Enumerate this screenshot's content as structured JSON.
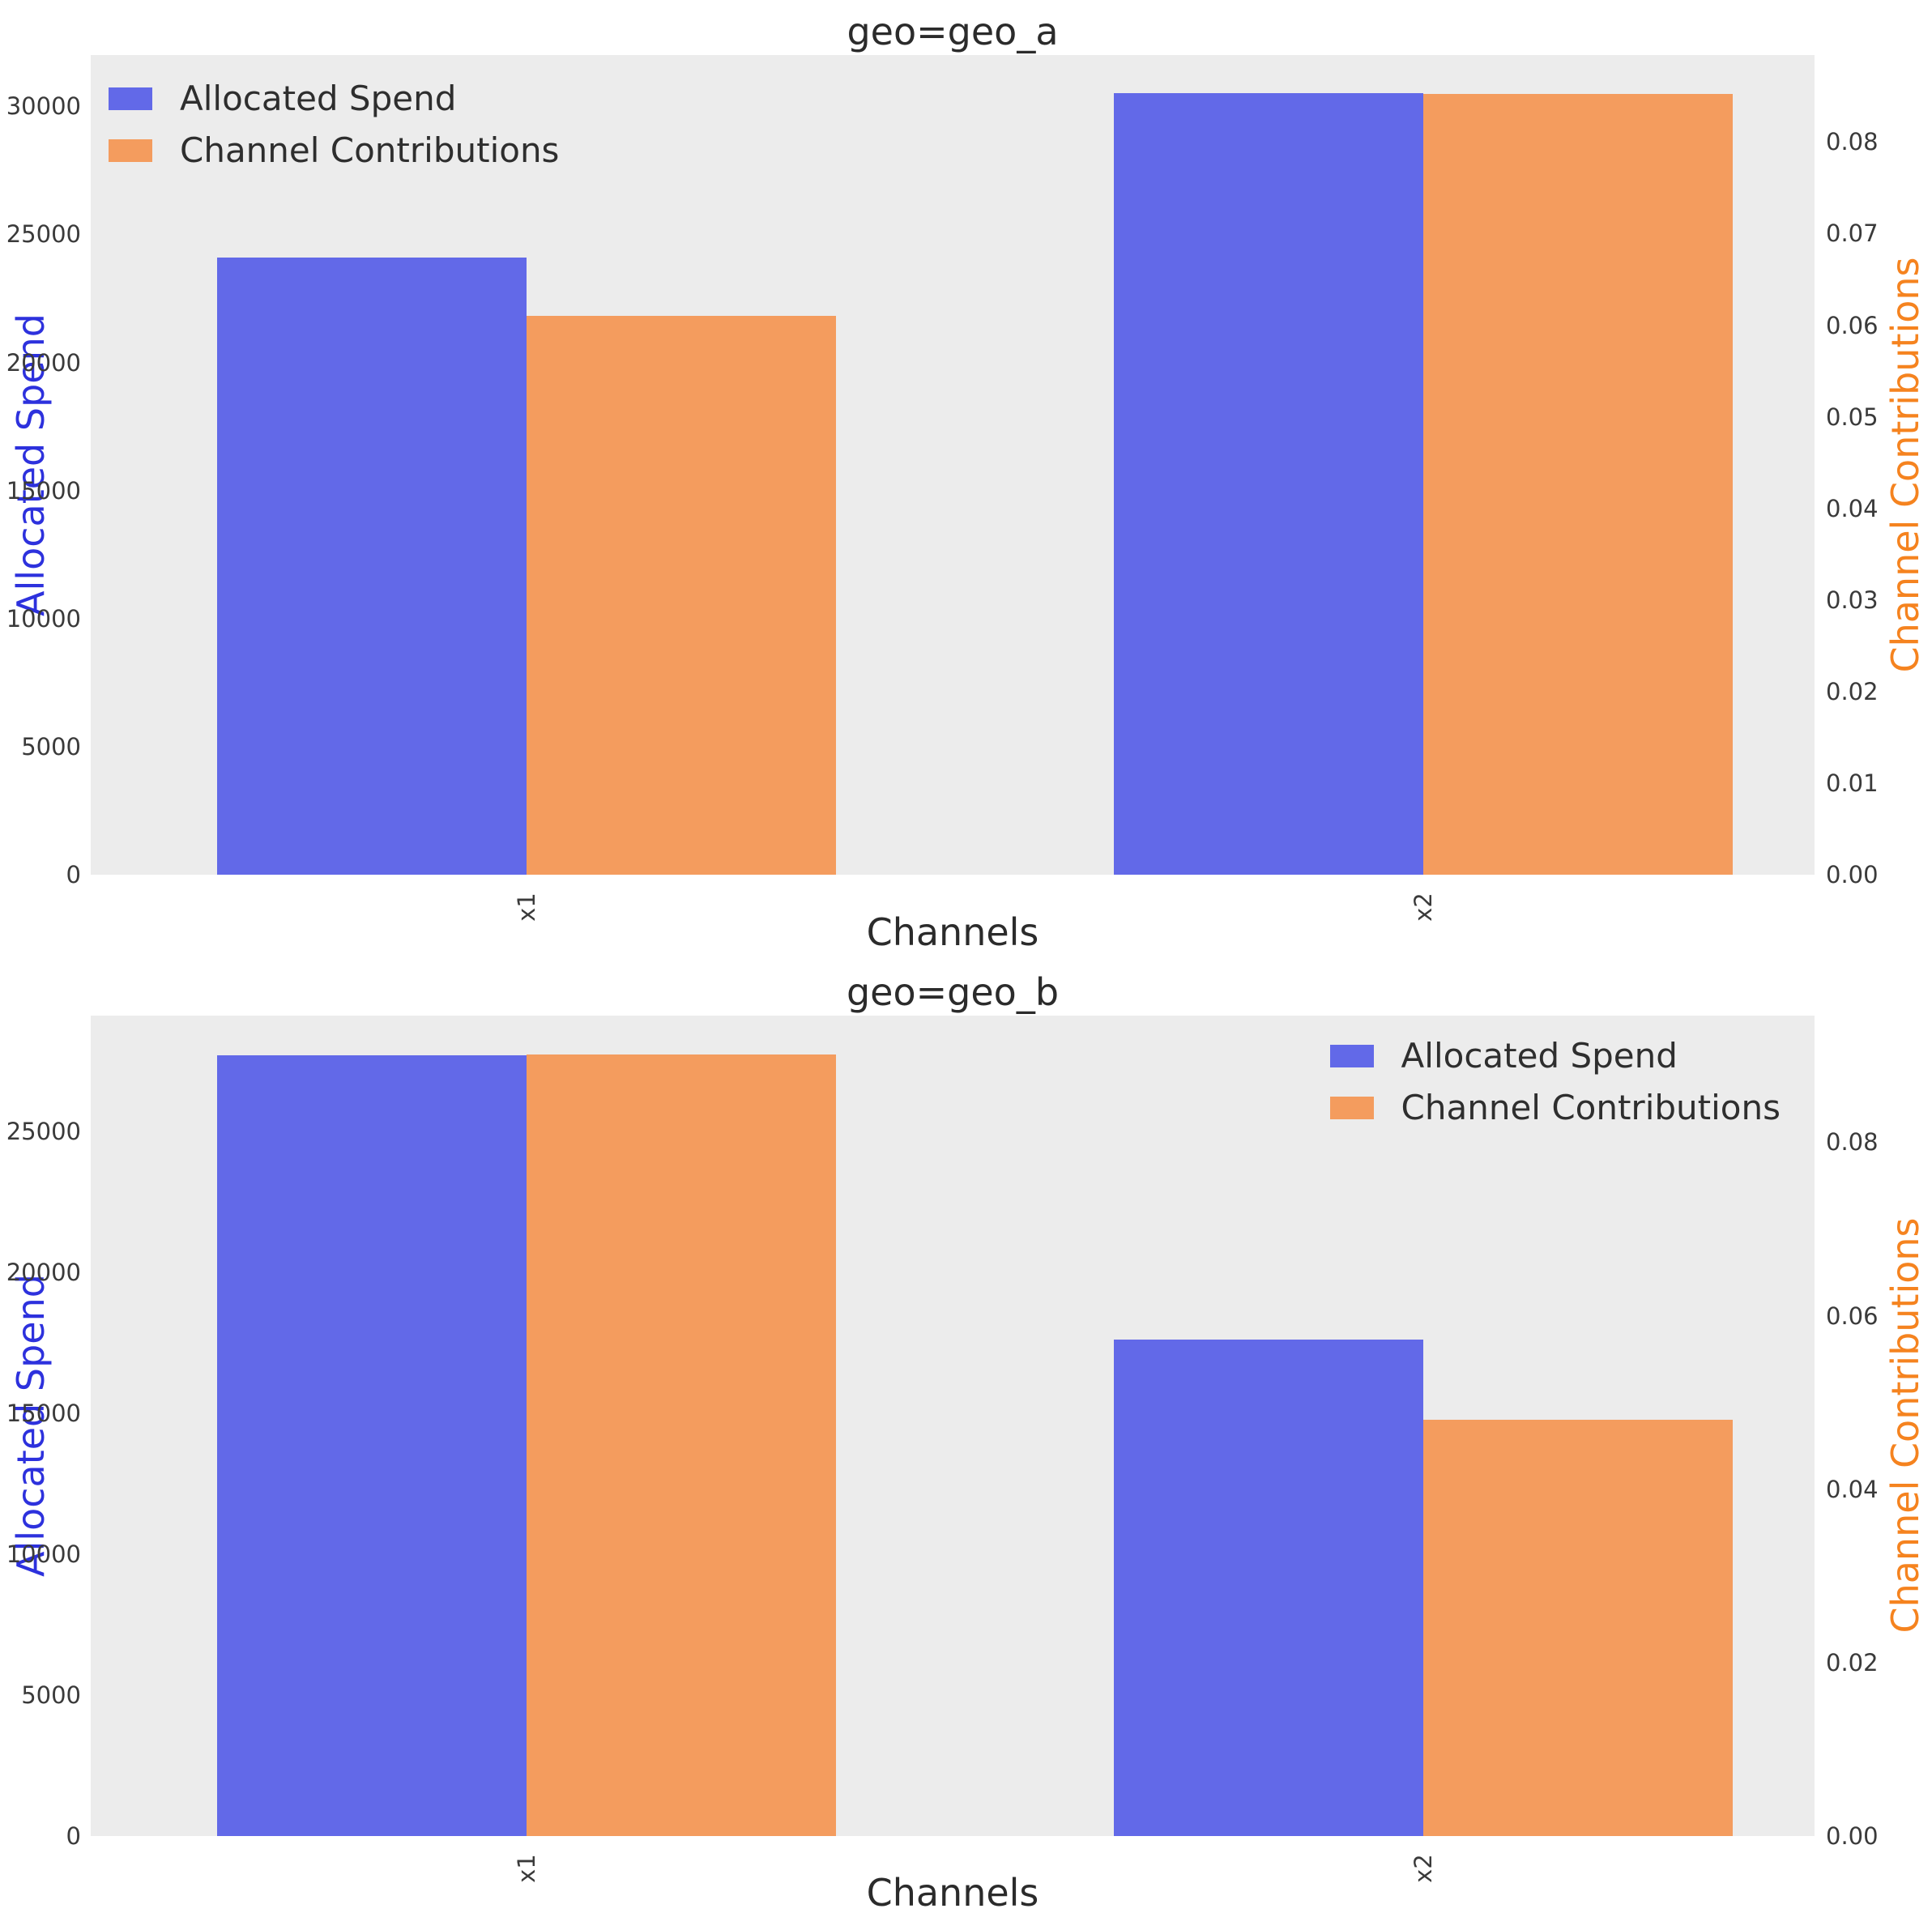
{
  "colors": {
    "spend_bar": "#6269e8",
    "contrib_bar": "#f49c5e",
    "spend_axis_label": "#2d31dd",
    "contrib_axis_label": "#f5831f",
    "plot_background": "#ececec",
    "figure_background": "#ffffff",
    "tick_text": "#3a3a3a",
    "title_text": "#2b2b2b"
  },
  "chart_data": [
    {
      "type": "bar",
      "title": "geo=geo_a",
      "xlabel": "Channels",
      "categories": [
        "x1",
        "x2"
      ],
      "series": [
        {
          "name": "Allocated Spend",
          "axis": "left",
          "color_key": "spend_bar",
          "values": [
            24100,
            30500
          ]
        },
        {
          "name": "Channel Contributions",
          "axis": "right",
          "color_key": "contrib_bar",
          "values": [
            0.061,
            0.0853
          ]
        }
      ],
      "left_axis": {
        "label": "Allocated Spend",
        "ylim": [
          0,
          32000
        ],
        "ticks": [
          "0",
          "5000",
          "10000",
          "15000",
          "20000",
          "25000",
          "30000"
        ]
      },
      "right_axis": {
        "label": "Channel Contributions",
        "ylim": [
          0,
          0.0895
        ],
        "ticks": [
          "0.00",
          "0.01",
          "0.02",
          "0.03",
          "0.04",
          "0.05",
          "0.06",
          "0.07",
          "0.08"
        ]
      },
      "legend": {
        "position": "upper-left",
        "entries": [
          "Allocated Spend",
          "Channel Contributions"
        ]
      },
      "grid": false
    },
    {
      "type": "bar",
      "title": "geo=geo_b",
      "xlabel": "Channels",
      "categories": [
        "x1",
        "x2"
      ],
      "series": [
        {
          "name": "Allocated Spend",
          "axis": "left",
          "color_key": "spend_bar",
          "values": [
            27700,
            17600
          ]
        },
        {
          "name": "Channel Contributions",
          "axis": "right",
          "color_key": "contrib_bar",
          "values": [
            0.0901,
            0.048
          ]
        }
      ],
      "left_axis": {
        "label": "Allocated Spend",
        "ylim": [
          0,
          29100
        ],
        "ticks": [
          "0",
          "5000",
          "10000",
          "15000",
          "20000",
          "25000"
        ]
      },
      "right_axis": {
        "label": "Channel Contributions",
        "ylim": [
          0,
          0.0946
        ],
        "ticks": [
          "0.00",
          "0.02",
          "0.04",
          "0.06",
          "0.08"
        ]
      },
      "legend": {
        "position": "upper-right",
        "entries": [
          "Allocated Spend",
          "Channel Contributions"
        ]
      },
      "grid": false
    }
  ]
}
